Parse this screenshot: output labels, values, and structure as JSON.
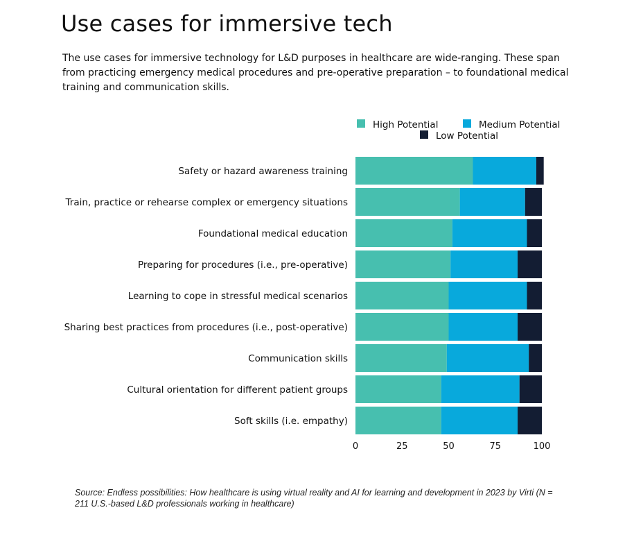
{
  "title": "Use cases for immersive tech",
  "subtitle": "The use cases for immersive technology for L&D purposes in healthcare are wide-ranging. These span from practicing emergency medical procedures and pre-operative preparation – to foundational medical training and communication skills.",
  "source": "Source: Endless possibilities: How healthcare is using virtual reality and AI for learning and development in 2023 by Virti (N = 211 U.S.-based L&D professionals working in healthcare)",
  "chart_data": {
    "type": "bar",
    "orientation": "horizontal",
    "stacked": true,
    "categories": [
      "Safety or hazard awareness training",
      "Train, practice or rehearse complex or emergency situations",
      "Foundational medical education",
      "Preparing for procedures (i.e., pre-operative)",
      "Learning to cope in stressful medical scenarios",
      "Sharing best practices from procedures (i.e., post-operative)",
      "Communication skills",
      "Cultural orientation for different patient groups",
      "Soft skills (i.e. empathy)"
    ],
    "series": [
      {
        "name": "High Potential",
        "color": "#47bfaf",
        "values": [
          63,
          56,
          52,
          51,
          50,
          50,
          49,
          46,
          46
        ]
      },
      {
        "name": "Medium Potential",
        "color": "#08a9dc",
        "values": [
          34,
          35,
          40,
          36,
          42,
          37,
          44,
          42,
          41
        ]
      },
      {
        "name": "Low Potential",
        "color": "#131d33",
        "values": [
          4,
          9,
          8,
          13,
          8,
          13,
          7,
          12,
          13
        ]
      }
    ],
    "xticks": [
      "0",
      "25",
      "50",
      "75",
      "100"
    ],
    "xlim": [
      0,
      100
    ],
    "legend_position": "top",
    "grid": false
  }
}
